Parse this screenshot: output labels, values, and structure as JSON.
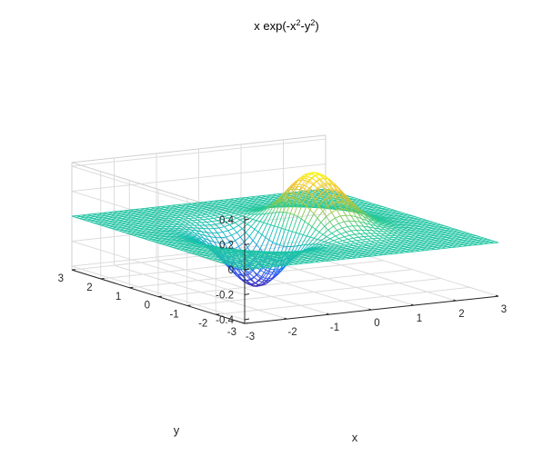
{
  "chart_data": {
    "type": "mesh",
    "title": "x exp(-x",
    "title_sup1": "2",
    "title_mid": "-y",
    "title_sup2": "2",
    "title_end": ")",
    "function": "z = x * exp(-x^2 - y^2)",
    "xlabel": "x",
    "ylabel": "y",
    "zlabel": "",
    "xlim": [
      -3,
      3
    ],
    "ylim": [
      -3,
      3
    ],
    "zlim": [
      -0.43,
      0.43
    ],
    "xticks": [
      -3,
      -2,
      -1,
      0,
      1,
      2,
      3
    ],
    "yticks": [
      -3,
      -2,
      -1,
      0,
      1,
      2,
      3
    ],
    "zticks": [
      -0.4,
      -0.2,
      0,
      0.2,
      0.4
    ],
    "xtick_labels": [
      "-3",
      "-2",
      "-1",
      "0",
      "1",
      "2",
      "3"
    ],
    "ytick_labels": [
      "-3",
      "-2",
      "-1",
      "0",
      "1",
      "2",
      "3"
    ],
    "ztick_labels": [
      "-0.4",
      "-0.2",
      "0",
      "0.2",
      "0.4"
    ],
    "grid_points": 49,
    "grid": true,
    "colormap": "parula",
    "colormap_stops": [
      "#3e26a8",
      "#2e57fa",
      "#1c9bde",
      "#13beb8",
      "#2ecb8e",
      "#a1c84a",
      "#f2c033",
      "#f9fb15"
    ],
    "peak": {
      "x": 0.707,
      "y": 0,
      "z": 0.4289
    },
    "trough": {
      "x": -0.707,
      "y": 0,
      "z": -0.4289
    }
  }
}
